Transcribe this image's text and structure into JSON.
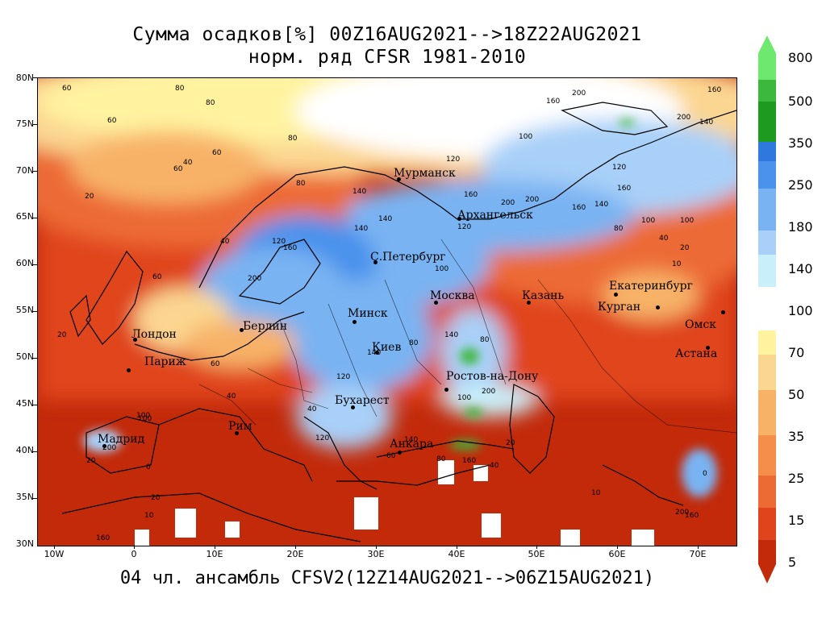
{
  "title": {
    "line1": "Сумма осадков[%] 00Z16AUG2021-->18Z22AUG2021",
    "line2": "норм. ряд CFSR 1981-2010"
  },
  "footer": "04 чл. ансамбль CFSV2(12Z14AUG2021-->06Z15AUG2021)",
  "lat_labels": [
    "80N",
    "75N",
    "70N",
    "65N",
    "60N",
    "55N",
    "50N",
    "45N",
    "40N",
    "35N",
    "30N"
  ],
  "lon_labels": [
    "10W",
    "0",
    "10E",
    "20E",
    "30E",
    "40E",
    "50E",
    "60E",
    "70E"
  ],
  "cities": [
    {
      "name": "Мурманск"
    },
    {
      "name": "Архангельск"
    },
    {
      "name": "С.Петербург"
    },
    {
      "name": "Москва"
    },
    {
      "name": "Казань"
    },
    {
      "name": "Екатеринбург"
    },
    {
      "name": "Курган"
    },
    {
      "name": "Омск"
    },
    {
      "name": "Астана"
    },
    {
      "name": "Минск"
    },
    {
      "name": "Берлин"
    },
    {
      "name": "Киев"
    },
    {
      "name": "Лондон"
    },
    {
      "name": "Париж"
    },
    {
      "name": "Ростов-на-Дону"
    },
    {
      "name": "Бухарест"
    },
    {
      "name": "Рим"
    },
    {
      "name": "Мадрид"
    },
    {
      "name": "Анкара"
    }
  ],
  "contour_values": [
    "60",
    "80",
    "60",
    "60",
    "80",
    "100",
    "160",
    "200",
    "160",
    "140",
    "200",
    "120",
    "160",
    "200",
    "140",
    "160",
    "100",
    "120",
    "140",
    "80",
    "60",
    "20",
    "40",
    "20",
    "40",
    "60",
    "80",
    "120",
    "140",
    "160",
    "200",
    "100",
    "120",
    "160",
    "200",
    "140",
    "140",
    "100",
    "120",
    "80",
    "60",
    "40",
    "20",
    "10",
    "0",
    "100",
    "200",
    "160",
    "140",
    "120",
    "80",
    "60",
    "40",
    "20",
    "100",
    "140",
    "200",
    "160",
    "80",
    "40",
    "20",
    "10",
    "0",
    "200",
    "160",
    "100",
    "80",
    "40",
    "20",
    "10"
  ],
  "legend": {
    "values": [
      "800",
      "500",
      "350",
      "250",
      "180",
      "140",
      "100",
      "70",
      "50",
      "35",
      "25",
      "15",
      "5"
    ],
    "colors": {
      "c800": "#6ee86e",
      "c500": "#3cb83c",
      "c350": "#1e9a1e",
      "c250a": "#2f78de",
      "c250b": "#4a92ec",
      "c180": "#79b3f2",
      "c140": "#a8d0f8",
      "c140b": "#c9f0fa",
      "c70": "#fff3a0",
      "c50": "#fbd690",
      "c35": "#f7b268",
      "c25": "#f48e4a",
      "c15": "#ec6a34",
      "c15b": "#e0441c",
      "c5": "#c22a0a"
    }
  }
}
